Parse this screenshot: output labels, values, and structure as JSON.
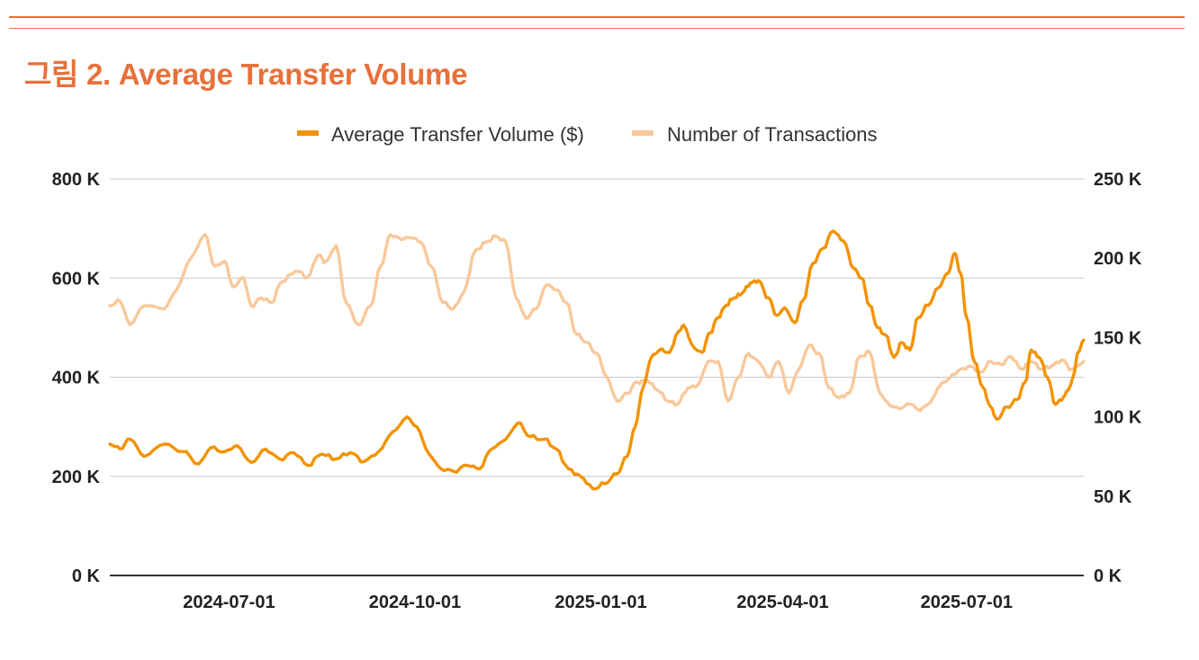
{
  "page": {
    "title": "그림 2. Average Transfer Volume"
  },
  "colors": {
    "accent": "#e8703a",
    "volume": "#f39200",
    "transactions": "#f9c89a",
    "grid": "#c8c8c8",
    "axis": "#333333"
  },
  "chart_data": {
    "type": "line",
    "title": "그림 2. Average Transfer Volume",
    "legend_position": "top-center",
    "x_start": "2024-05-03",
    "x_end": "2025-08-28",
    "xticks": [
      {
        "date": "2024-07-01",
        "label": "2024-07-01"
      },
      {
        "date": "2024-10-01",
        "label": "2024-10-01"
      },
      {
        "date": "2025-01-01",
        "label": "2025-01-01"
      },
      {
        "date": "2025-04-01",
        "label": "2025-04-01"
      },
      {
        "date": "2025-07-01",
        "label": "2025-07-01"
      }
    ],
    "y_left": {
      "range": [
        0,
        800000
      ],
      "ticks": [
        {
          "value": 0,
          "label": "0 K"
        },
        {
          "value": 200000,
          "label": "200 K"
        },
        {
          "value": 400000,
          "label": "400 K"
        },
        {
          "value": 600000,
          "label": "600 K"
        },
        {
          "value": 800000,
          "label": "800 K"
        }
      ]
    },
    "y_right": {
      "range": [
        0,
        250000
      ],
      "ticks": [
        {
          "value": 0,
          "label": "0 K"
        },
        {
          "value": 50000,
          "label": "50 K"
        },
        {
          "value": 100000,
          "label": "100 K"
        },
        {
          "value": 150000,
          "label": "150 K"
        },
        {
          "value": 200000,
          "label": "200 K"
        },
        {
          "value": 250000,
          "label": "250 K"
        }
      ]
    },
    "series": [
      {
        "name": "Average Transfer Volume ($)",
        "axis": "left",
        "color": "#f39200",
        "points": [
          [
            "2024-05-03",
            265000
          ],
          [
            "2024-05-08",
            255000
          ],
          [
            "2024-05-13",
            275000
          ],
          [
            "2024-05-20",
            240000
          ],
          [
            "2024-05-30",
            265000
          ],
          [
            "2024-06-08",
            250000
          ],
          [
            "2024-06-16",
            225000
          ],
          [
            "2024-06-22",
            258000
          ],
          [
            "2024-06-29",
            250000
          ],
          [
            "2024-07-05",
            262000
          ],
          [
            "2024-07-12",
            228000
          ],
          [
            "2024-07-19",
            255000
          ],
          [
            "2024-07-26",
            235000
          ],
          [
            "2024-08-02",
            248000
          ],
          [
            "2024-08-09",
            222000
          ],
          [
            "2024-08-16",
            245000
          ],
          [
            "2024-08-23",
            235000
          ],
          [
            "2024-08-30",
            248000
          ],
          [
            "2024-09-06",
            230000
          ],
          [
            "2024-09-13",
            250000
          ],
          [
            "2024-09-20",
            290000
          ],
          [
            "2024-09-27",
            320000
          ],
          [
            "2024-10-02",
            300000
          ],
          [
            "2024-10-08",
            245000
          ],
          [
            "2024-10-14",
            215000
          ],
          [
            "2024-10-20",
            210000
          ],
          [
            "2024-10-27",
            222000
          ],
          [
            "2024-11-02",
            215000
          ],
          [
            "2024-11-08",
            255000
          ],
          [
            "2024-11-15",
            275000
          ],
          [
            "2024-11-21",
            308000
          ],
          [
            "2024-11-27",
            280000
          ],
          [
            "2024-12-04",
            275000
          ],
          [
            "2024-12-10",
            255000
          ],
          [
            "2024-12-16",
            215000
          ],
          [
            "2024-12-22",
            200000
          ],
          [
            "2024-12-28",
            175000
          ],
          [
            "2025-01-03",
            185000
          ],
          [
            "2025-01-09",
            205000
          ],
          [
            "2025-01-14",
            240000
          ],
          [
            "2025-01-18",
            300000
          ],
          [
            "2025-01-22",
            380000
          ],
          [
            "2025-01-26",
            440000
          ],
          [
            "2025-01-30",
            455000
          ],
          [
            "2025-02-04",
            450000
          ],
          [
            "2025-02-08",
            490000
          ],
          [
            "2025-02-11",
            505000
          ],
          [
            "2025-02-16",
            460000
          ],
          [
            "2025-02-20",
            450000
          ],
          [
            "2025-02-24",
            490000
          ],
          [
            "2025-02-28",
            520000
          ],
          [
            "2025-03-04",
            545000
          ],
          [
            "2025-03-08",
            560000
          ],
          [
            "2025-03-12",
            570000
          ],
          [
            "2025-03-16",
            590000
          ],
          [
            "2025-03-20",
            595000
          ],
          [
            "2025-03-25",
            560000
          ],
          [
            "2025-03-29",
            525000
          ],
          [
            "2025-04-02",
            540000
          ],
          [
            "2025-04-07",
            510000
          ],
          [
            "2025-04-11",
            555000
          ],
          [
            "2025-04-16",
            630000
          ],
          [
            "2025-04-21",
            660000
          ],
          [
            "2025-04-26",
            695000
          ],
          [
            "2025-05-01",
            675000
          ],
          [
            "2025-05-06",
            620000
          ],
          [
            "2025-05-10",
            600000
          ],
          [
            "2025-05-14",
            545000
          ],
          [
            "2025-05-18",
            500000
          ],
          [
            "2025-05-22",
            485000
          ],
          [
            "2025-05-26",
            440000
          ],
          [
            "2025-05-30",
            470000
          ],
          [
            "2025-06-03",
            455000
          ],
          [
            "2025-06-07",
            520000
          ],
          [
            "2025-06-12",
            545000
          ],
          [
            "2025-06-17",
            580000
          ],
          [
            "2025-06-22",
            610000
          ],
          [
            "2025-06-25",
            650000
          ],
          [
            "2025-06-28",
            610000
          ],
          [
            "2025-07-01",
            520000
          ],
          [
            "2025-07-05",
            430000
          ],
          [
            "2025-07-09",
            380000
          ],
          [
            "2025-07-13",
            340000
          ],
          [
            "2025-07-16",
            315000
          ],
          [
            "2025-07-21",
            340000
          ],
          [
            "2025-07-26",
            355000
          ],
          [
            "2025-07-30",
            390000
          ],
          [
            "2025-08-02",
            455000
          ],
          [
            "2025-08-06",
            440000
          ],
          [
            "2025-08-10",
            400000
          ],
          [
            "2025-08-14",
            345000
          ],
          [
            "2025-08-18",
            360000
          ],
          [
            "2025-08-21",
            380000
          ],
          [
            "2025-08-23",
            405000
          ],
          [
            "2025-08-25",
            450000
          ],
          [
            "2025-08-28",
            475000
          ]
        ]
      },
      {
        "name": "Number of Transactions",
        "axis": "right",
        "color": "#f9c89a",
        "points": [
          [
            "2024-05-03",
            170000
          ],
          [
            "2024-05-08",
            173000
          ],
          [
            "2024-05-13",
            158000
          ],
          [
            "2024-05-20",
            170000
          ],
          [
            "2024-05-30",
            168000
          ],
          [
            "2024-06-05",
            180000
          ],
          [
            "2024-06-12",
            200000
          ],
          [
            "2024-06-19",
            215000
          ],
          [
            "2024-06-24",
            195000
          ],
          [
            "2024-06-29",
            198000
          ],
          [
            "2024-07-03",
            182000
          ],
          [
            "2024-07-08",
            188000
          ],
          [
            "2024-07-12",
            170000
          ],
          [
            "2024-07-17",
            175000
          ],
          [
            "2024-07-22",
            172000
          ],
          [
            "2024-07-27",
            185000
          ],
          [
            "2024-08-03",
            192000
          ],
          [
            "2024-08-09",
            188000
          ],
          [
            "2024-08-14",
            202000
          ],
          [
            "2024-08-18",
            198000
          ],
          [
            "2024-08-23",
            208000
          ],
          [
            "2024-08-28",
            172000
          ],
          [
            "2024-09-03",
            158000
          ],
          [
            "2024-09-09",
            170000
          ],
          [
            "2024-09-14",
            195000
          ],
          [
            "2024-09-19",
            215000
          ],
          [
            "2024-09-24",
            212000
          ],
          [
            "2024-09-29",
            213000
          ],
          [
            "2024-10-04",
            210000
          ],
          [
            "2024-10-09",
            195000
          ],
          [
            "2024-10-15",
            172000
          ],
          [
            "2024-10-20",
            168000
          ],
          [
            "2024-10-25",
            178000
          ],
          [
            "2024-10-31",
            205000
          ],
          [
            "2024-11-05",
            210000
          ],
          [
            "2024-11-10",
            214000
          ],
          [
            "2024-11-15",
            210000
          ],
          [
            "2024-11-20",
            175000
          ],
          [
            "2024-11-25",
            162000
          ],
          [
            "2024-11-30",
            168000
          ],
          [
            "2024-12-05",
            183000
          ],
          [
            "2024-12-10",
            180000
          ],
          [
            "2024-12-15",
            172000
          ],
          [
            "2024-12-20",
            152000
          ],
          [
            "2024-12-25",
            147000
          ],
          [
            "2024-12-30",
            140000
          ],
          [
            "2025-01-04",
            125000
          ],
          [
            "2025-01-09",
            110000
          ],
          [
            "2025-01-14",
            115000
          ],
          [
            "2025-01-19",
            122000
          ],
          [
            "2025-01-24",
            123000
          ],
          [
            "2025-01-29",
            117000
          ],
          [
            "2025-02-03",
            110000
          ],
          [
            "2025-02-08",
            108000
          ],
          [
            "2025-02-13",
            118000
          ],
          [
            "2025-02-18",
            120000
          ],
          [
            "2025-02-23",
            135000
          ],
          [
            "2025-02-28",
            135000
          ],
          [
            "2025-03-05",
            110000
          ],
          [
            "2025-03-10",
            125000
          ],
          [
            "2025-03-15",
            140000
          ],
          [
            "2025-03-20",
            135000
          ],
          [
            "2025-03-25",
            125000
          ],
          [
            "2025-03-30",
            135000
          ],
          [
            "2025-04-04",
            115000
          ],
          [
            "2025-04-09",
            130000
          ],
          [
            "2025-04-14",
            145000
          ],
          [
            "2025-04-19",
            140000
          ],
          [
            "2025-04-24",
            118000
          ],
          [
            "2025-04-29",
            112000
          ],
          [
            "2025-05-04",
            115000
          ],
          [
            "2025-05-09",
            138000
          ],
          [
            "2025-05-14",
            141000
          ],
          [
            "2025-05-19",
            115000
          ],
          [
            "2025-05-24",
            107000
          ],
          [
            "2025-05-29",
            105000
          ],
          [
            "2025-06-03",
            108000
          ],
          [
            "2025-06-08",
            104000
          ],
          [
            "2025-06-13",
            109000
          ],
          [
            "2025-06-18",
            120000
          ],
          [
            "2025-06-23",
            125000
          ],
          [
            "2025-06-28",
            130000
          ],
          [
            "2025-07-03",
            132000
          ],
          [
            "2025-07-08",
            128000
          ],
          [
            "2025-07-13",
            135000
          ],
          [
            "2025-07-18",
            133000
          ],
          [
            "2025-07-23",
            138000
          ],
          [
            "2025-07-28",
            130000
          ],
          [
            "2025-08-02",
            135000
          ],
          [
            "2025-08-07",
            130000
          ],
          [
            "2025-08-12",
            132000
          ],
          [
            "2025-08-17",
            136000
          ],
          [
            "2025-08-22",
            130000
          ],
          [
            "2025-08-28",
            135000
          ]
        ]
      }
    ]
  }
}
